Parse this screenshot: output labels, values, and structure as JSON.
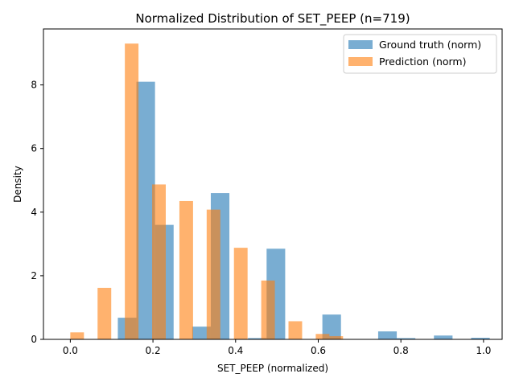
{
  "chart_data": {
    "type": "bar",
    "title": "Normalized Distribution of SET_PEEP (n=719)",
    "xlabel": "SET_PEEP (normalized)",
    "ylabel": "Density",
    "xlim": [
      -0.065,
      1.045
    ],
    "ylim": [
      0,
      9.76
    ],
    "xticks": [
      "0.0",
      "0.2",
      "0.4",
      "0.6",
      "0.8",
      "1.0"
    ],
    "yticks": [
      "0",
      "2",
      "4",
      "6",
      "8"
    ],
    "legend_position": "top-right",
    "grid": false,
    "series": [
      {
        "name": "Ground truth (norm)",
        "color": "#1f77b4",
        "opacity": 0.6,
        "bins": [
          {
            "x0": 0.07,
            "x1": 0.115,
            "value": 0.0
          },
          {
            "x0": 0.115,
            "x1": 0.16,
            "value": 0.68
          },
          {
            "x0": 0.16,
            "x1": 0.205,
            "value": 8.1
          },
          {
            "x0": 0.205,
            "x1": 0.25,
            "value": 3.6
          },
          {
            "x0": 0.25,
            "x1": 0.295,
            "value": 0.0
          },
          {
            "x0": 0.295,
            "x1": 0.34,
            "value": 0.4
          },
          {
            "x0": 0.34,
            "x1": 0.385,
            "value": 4.6
          },
          {
            "x0": 0.385,
            "x1": 0.43,
            "value": 0.0
          },
          {
            "x0": 0.43,
            "x1": 0.475,
            "value": 0.04
          },
          {
            "x0": 0.475,
            "x1": 0.52,
            "value": 2.85
          },
          {
            "x0": 0.52,
            "x1": 0.565,
            "value": 0.0
          },
          {
            "x0": 0.565,
            "x1": 0.61,
            "value": 0.0
          },
          {
            "x0": 0.61,
            "x1": 0.655,
            "value": 0.78
          },
          {
            "x0": 0.655,
            "x1": 0.7,
            "value": 0.0
          },
          {
            "x0": 0.7,
            "x1": 0.745,
            "value": 0.0
          },
          {
            "x0": 0.745,
            "x1": 0.79,
            "value": 0.25
          },
          {
            "x0": 0.79,
            "x1": 0.835,
            "value": 0.04
          },
          {
            "x0": 0.835,
            "x1": 0.88,
            "value": 0.0
          },
          {
            "x0": 0.88,
            "x1": 0.925,
            "value": 0.12
          },
          {
            "x0": 0.925,
            "x1": 0.97,
            "value": 0.0
          },
          {
            "x0": 0.97,
            "x1": 1.015,
            "value": 0.05
          }
        ]
      },
      {
        "name": "Prediction (norm)",
        "color": "#ff7f0e",
        "opacity": 0.6,
        "bins": [
          {
            "x0": 0.0,
            "x1": 0.033,
            "value": 0.22
          },
          {
            "x0": 0.066,
            "x1": 0.099,
            "value": 1.62
          },
          {
            "x0": 0.132,
            "x1": 0.165,
            "value": 9.3
          },
          {
            "x0": 0.198,
            "x1": 0.231,
            "value": 4.87
          },
          {
            "x0": 0.264,
            "x1": 0.297,
            "value": 4.35
          },
          {
            "x0": 0.33,
            "x1": 0.363,
            "value": 4.08
          },
          {
            "x0": 0.396,
            "x1": 0.429,
            "value": 2.88
          },
          {
            "x0": 0.462,
            "x1": 0.495,
            "value": 1.85
          },
          {
            "x0": 0.528,
            "x1": 0.561,
            "value": 0.57
          },
          {
            "x0": 0.594,
            "x1": 0.627,
            "value": 0.17
          },
          {
            "x0": 0.627,
            "x1": 0.66,
            "value": 0.1
          }
        ]
      }
    ]
  }
}
